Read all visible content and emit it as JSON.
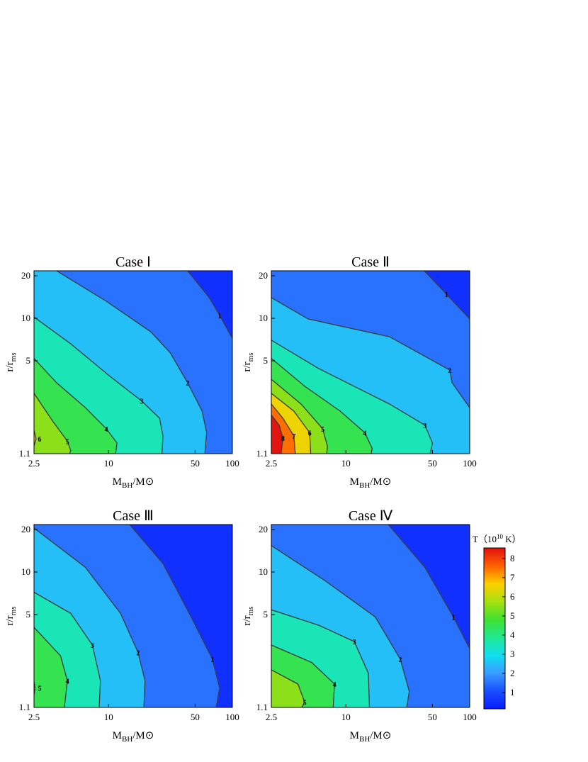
{
  "chart_data": [
    {
      "type": "contour",
      "title": "Case Ⅰ",
      "x_label": [
        "M",
        "BH",
        "/M⊙"
      ],
      "y_label": [
        "r/r",
        "ms"
      ],
      "xscale": "log",
      "yscale": "log",
      "xlim": [
        2.5,
        100
      ],
      "ylim": [
        1.1,
        21.7
      ],
      "xticks": [
        2.5,
        10,
        50,
        100
      ],
      "yticks": [
        1.1,
        5,
        10,
        20
      ],
      "contours": [
        {
          "level": 1,
          "x": [
            43.5,
            65,
            79,
            100
          ],
          "y": [
            21.7,
            14,
            10.5,
            7.2
          ]
        },
        {
          "level": 2,
          "x": [
            3.8,
            9.6,
            22,
            31.5,
            43.5,
            57,
            62,
            60
          ],
          "y": [
            21.7,
            13.2,
            8.0,
            5.7,
            3.5,
            2.2,
            1.55,
            1.1
          ]
        },
        {
          "level": 3,
          "x": [
            2.5,
            4.95,
            10.2,
            18.5,
            25.8,
            27.5,
            27
          ],
          "y": [
            10.2,
            6.6,
            3.9,
            2.6,
            1.96,
            1.47,
            1.1
          ]
        },
        {
          "level": 4,
          "x": [
            2.5,
            3.8,
            6.5,
            9.6,
            11.7,
            11.4
          ],
          "y": [
            5.2,
            3.5,
            2.33,
            1.65,
            1.31,
            1.1
          ]
        },
        {
          "level": 5,
          "x": [
            2.5,
            3.57,
            4.65,
            4.95,
            4.85
          ],
          "y": [
            2.94,
            1.85,
            1.35,
            1.16,
            1.1
          ]
        },
        {
          "level": 6,
          "x": [
            2.5,
            2.6,
            2.5
          ],
          "y": [
            1.6,
            1.4,
            1.25
          ]
        }
      ]
    },
    {
      "type": "contour",
      "title": "Case Ⅱ",
      "x_label": [
        "M",
        "BH",
        "/M⊙"
      ],
      "y_label": [
        "r/r",
        "ms"
      ],
      "xscale": "log",
      "yscale": "log",
      "xlim": [
        2.5,
        100
      ],
      "ylim": [
        1.1,
        21.7
      ],
      "xticks": [
        2.5,
        10,
        50,
        100
      ],
      "yticks": [
        1.1,
        5,
        10,
        20
      ],
      "contours": [
        {
          "level": 1,
          "x": [
            43,
            65,
            100
          ],
          "y": [
            21.7,
            14.8,
            9.9
          ]
        },
        {
          "level": 2,
          "x": [
            2.5,
            4.95,
            22.5,
            69,
            72,
            100
          ],
          "y": [
            14,
            9.9,
            7.4,
            4.3,
            3.5,
            2.33
          ]
        },
        {
          "level": 3,
          "x": [
            2.5,
            6.05,
            22.5,
            43.5,
            50,
            48
          ],
          "y": [
            7,
            4.4,
            2.47,
            1.75,
            1.31,
            1.1
          ]
        },
        {
          "level": 4,
          "x": [
            2.5,
            4.65,
            9,
            14.2,
            16.3,
            16
          ],
          "y": [
            5.2,
            3.3,
            2.2,
            1.55,
            1.2,
            1.1
          ]
        },
        {
          "level": 5,
          "x": [
            2.5,
            4.35,
            6.5,
            7.1,
            7
          ],
          "y": [
            3.7,
            2.47,
            1.65,
            1.24,
            1.1
          ]
        },
        {
          "level": 6,
          "x": [
            2.5,
            3.8,
            5.1,
            5.2
          ],
          "y": [
            2.94,
            2.2,
            1.55,
            1.1
          ]
        },
        {
          "level": 7,
          "x": [
            2.5,
            3.1,
            3.8,
            3.9
          ],
          "y": [
            2.47,
            1.96,
            1.47,
            1.1
          ]
        },
        {
          "level": 8,
          "x": [
            2.5,
            2.9,
            3.1,
            3.0
          ],
          "y": [
            2.07,
            1.74,
            1.42,
            1.1
          ]
        }
      ]
    },
    {
      "type": "contour",
      "title": "Case Ⅲ",
      "x_label": [
        "M",
        "BH",
        "/M⊙"
      ],
      "y_label": [
        "r/r",
        "ms"
      ],
      "xscale": "log",
      "yscale": "log",
      "xlim": [
        2.5,
        100
      ],
      "ylim": [
        1.1,
        21.7
      ],
      "xticks": [
        2.5,
        10,
        50,
        100
      ],
      "yticks": [
        1.1,
        5,
        10,
        20
      ],
      "contours": [
        {
          "level": 1,
          "x": [
            14.8,
            27.5,
            46.5,
            69,
            79,
            74
          ],
          "y": [
            21.7,
            11.5,
            4.8,
            2.42,
            1.51,
            1.1
          ]
        },
        {
          "level": 2,
          "x": [
            2.5,
            6.5,
            12.5,
            17.3,
            19.7,
            19.3
          ],
          "y": [
            20.5,
            10.8,
            5.1,
            2.7,
            1.7,
            1.1
          ]
        },
        {
          "level": 3,
          "x": [
            2.5,
            4.95,
            7.4,
            8.6,
            8.4
          ],
          "y": [
            7.2,
            5.1,
            3.04,
            1.7,
            1.1
          ]
        },
        {
          "level": 4,
          "x": [
            2.5,
            4.1,
            4.65,
            4.4
          ],
          "y": [
            4.06,
            2.55,
            1.7,
            1.1
          ]
        },
        {
          "level": 5,
          "x": [
            2.5,
            2.55,
            2.5
          ],
          "y": [
            1.67,
            1.51,
            1.35
          ]
        }
      ]
    },
    {
      "type": "contour",
      "title": "Case Ⅳ",
      "x_label": [
        "M",
        "BH",
        "/M⊙"
      ],
      "y_label": [
        "r/r",
        "ms"
      ],
      "xscale": "log",
      "yscale": "log",
      "xlim": [
        2.5,
        100
      ],
      "ylim": [
        1.1,
        21.7
      ],
      "xticks": [
        2.5,
        10,
        50,
        100
      ],
      "yticks": [
        1.1,
        5,
        10,
        20
      ],
      "contours": [
        {
          "level": 1,
          "x": [
            22,
            43.5,
            74,
            100
          ],
          "y": [
            21.7,
            10.8,
            4.8,
            2.87
          ]
        },
        {
          "level": 2,
          "x": [
            2.5,
            6.9,
            17.3,
            27.5,
            32.5,
            31
          ],
          "y": [
            15.4,
            8.6,
            4.8,
            2.42,
            1.43,
            1.1
          ]
        },
        {
          "level": 3,
          "x": [
            2.5,
            6.05,
            11.7,
            15.2,
            15.5
          ],
          "y": [
            5.4,
            4.2,
            3.22,
            1.92,
            1.1
          ]
        },
        {
          "level": 4,
          "x": [
            2.5,
            5.3,
            8.1,
            7.9
          ],
          "y": [
            3.04,
            2.29,
            1.61,
            1.1
          ]
        },
        {
          "level": 5,
          "x": [
            2.5,
            4.1,
            4.65,
            4.4
          ],
          "y": [
            2.03,
            1.61,
            1.2,
            1.1
          ]
        }
      ]
    },
    {
      "type": "colorbar",
      "title": [
        "T（10",
        "10",
        " K）"
      ],
      "zlim": [
        0.15,
        8.55
      ],
      "zticks": [
        1,
        2,
        3,
        4,
        5,
        6,
        7,
        8
      ],
      "colors": [
        "#0a1cff",
        "#1a50ff",
        "#3a9cff",
        "#10e0f0",
        "#20e890",
        "#40e030",
        "#a8e010",
        "#ffd000",
        "#ff6000",
        "#e01010"
      ]
    }
  ]
}
